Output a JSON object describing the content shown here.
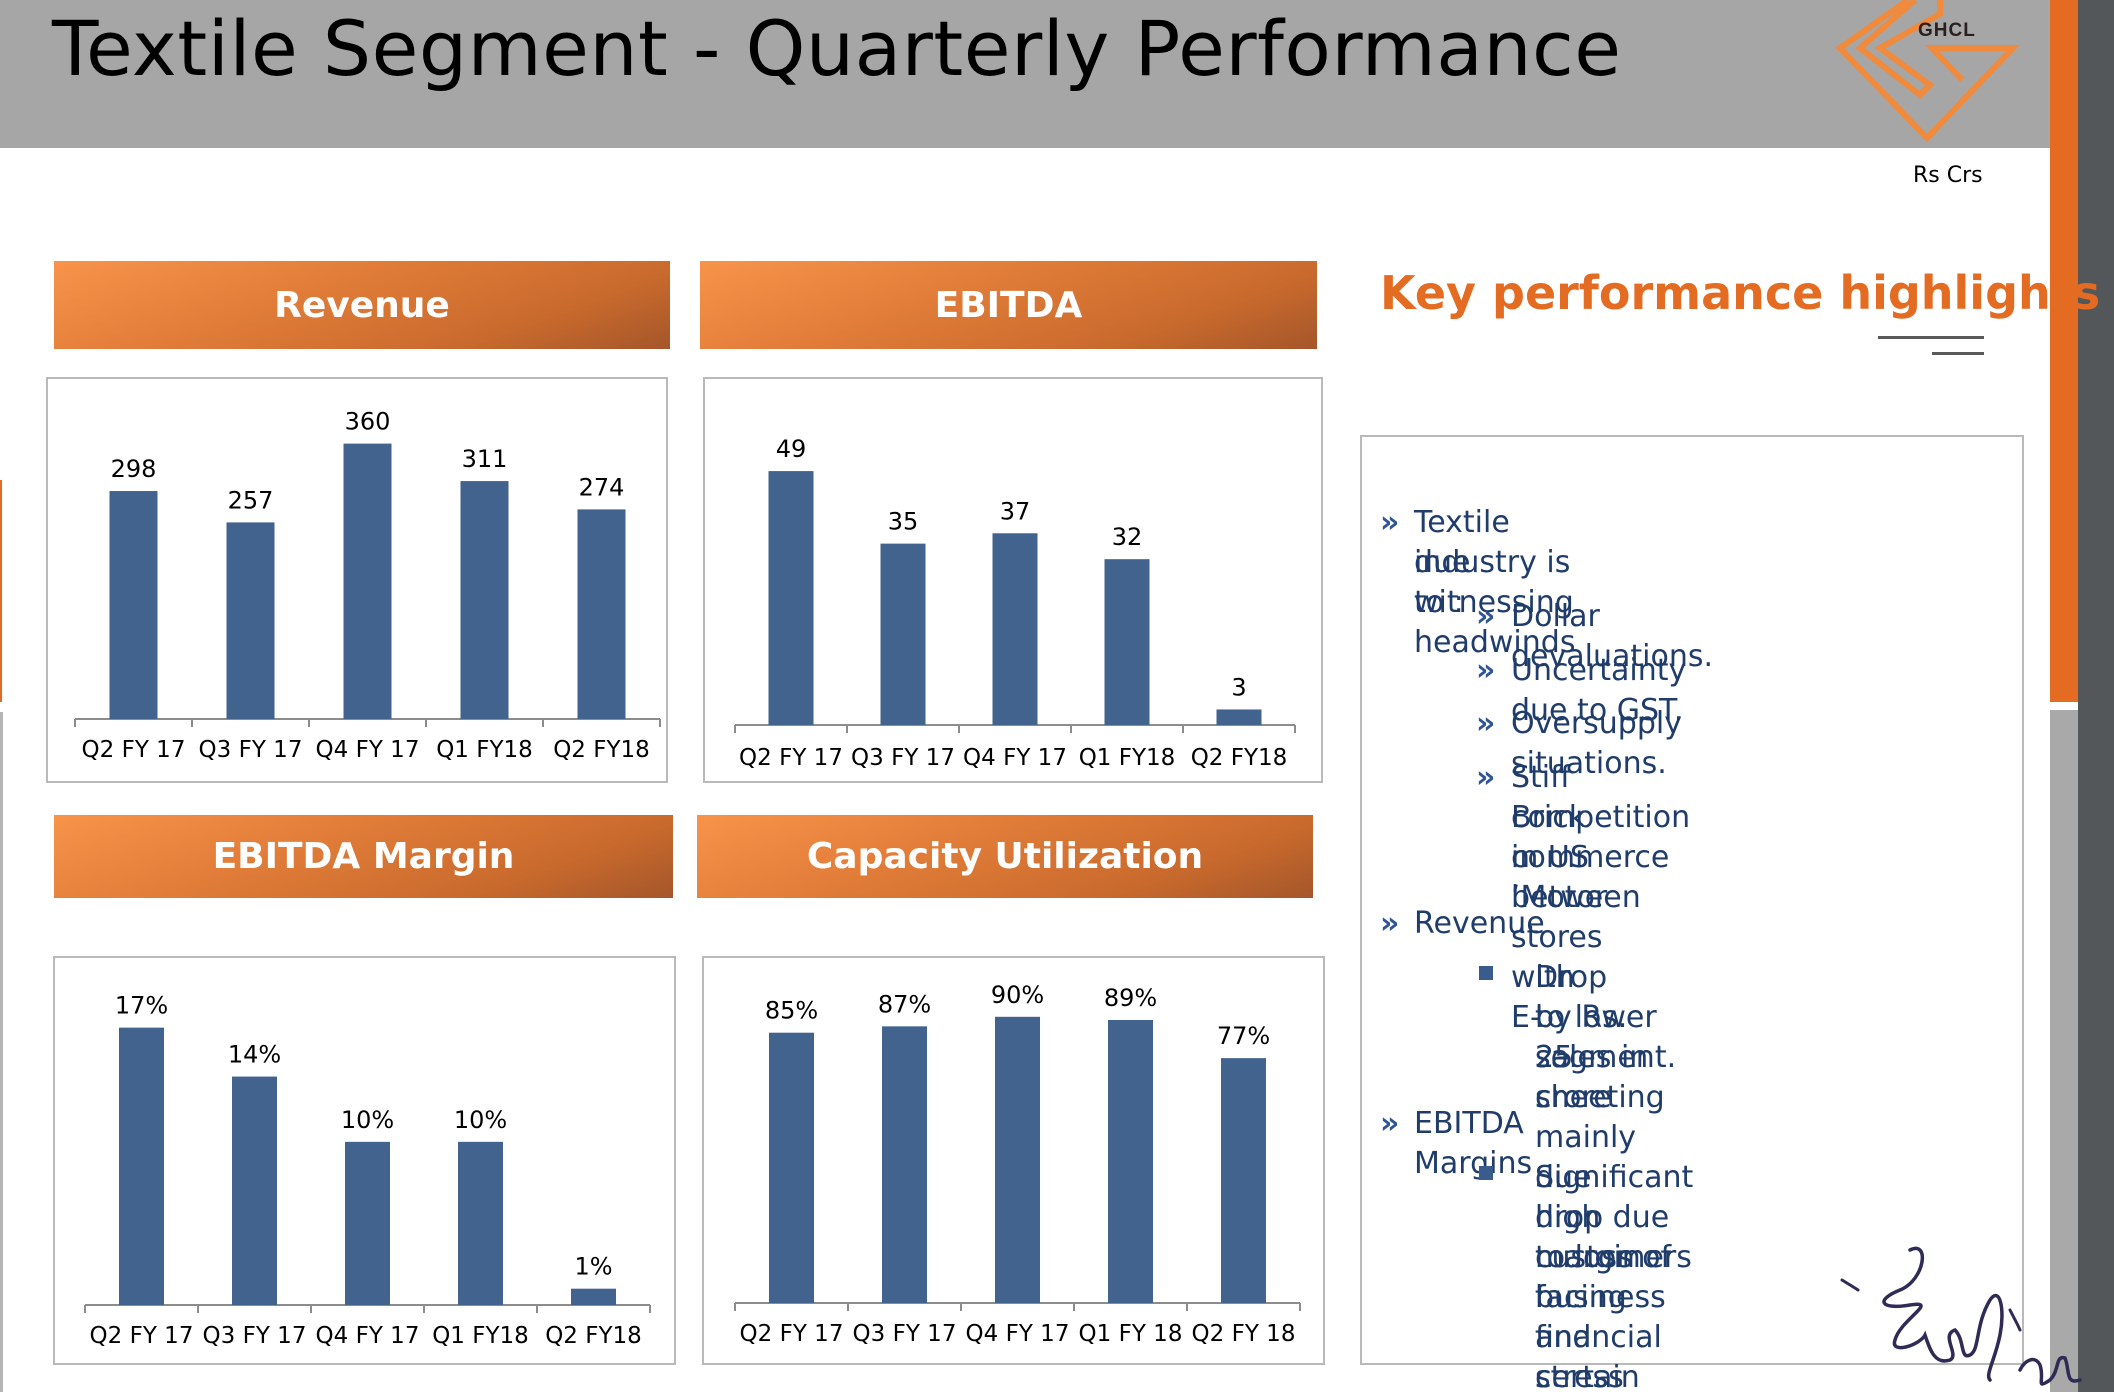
{
  "header": {
    "title": "Textile Segment - Quarterly Performance",
    "logo_text": "GHCL",
    "units": "Rs Crs"
  },
  "colors": {
    "header_bg": "#a6a6a6",
    "accent_orange": "#e46c22",
    "bar": "#41638e",
    "highlight_text": "#1f3c6b"
  },
  "chart_data": [
    {
      "type": "bar",
      "title": "Revenue",
      "categories": [
        "Q2 FY 17",
        "Q3 FY 17",
        "Q4 FY 17",
        "Q1 FY18",
        "Q2 FY18"
      ],
      "values": [
        298,
        257,
        360,
        311,
        274
      ],
      "value_labels": [
        "298",
        "257",
        "360",
        "311",
        "274"
      ],
      "xlabel": "",
      "ylabel": "",
      "ylim": [
        0,
        400
      ],
      "grid": false,
      "legend": "none"
    },
    {
      "type": "bar",
      "title": "EBITDA",
      "categories": [
        "Q2 FY 17",
        "Q3 FY 17",
        "Q4 FY 17",
        "Q1 FY18",
        "Q2 FY18"
      ],
      "values": [
        49,
        35,
        37,
        32,
        3
      ],
      "value_labels": [
        "49",
        "35",
        "37",
        "32",
        "3"
      ],
      "xlabel": "",
      "ylabel": "",
      "ylim": [
        0,
        55
      ],
      "grid": false,
      "legend": "none"
    },
    {
      "type": "bar",
      "title": "EBITDA Margin",
      "categories": [
        "Q2 FY 17",
        "Q3 FY 17",
        "Q4 FY 17",
        "Q1 FY18",
        "Q2 FY18"
      ],
      "values": [
        17,
        14,
        10,
        10,
        1
      ],
      "value_labels": [
        "17%",
        "14%",
        "10%",
        "10%",
        "1%"
      ],
      "xlabel": "",
      "ylabel": "",
      "ylim": [
        0,
        19
      ],
      "grid": false,
      "legend": "none"
    },
    {
      "type": "bar",
      "title": "Capacity Utilization",
      "categories": [
        "Q2 FY 17",
        "Q3 FY 17",
        "Q4 FY 17",
        "Q1 FY 18",
        "Q2 FY 18"
      ],
      "values": [
        85,
        87,
        90,
        89,
        77
      ],
      "value_labels": [
        "85%",
        "87%",
        "90%",
        "89%",
        "77%"
      ],
      "xlabel": "",
      "ylabel": "",
      "ylim": [
        0,
        100
      ],
      "grid": false,
      "legend": "none"
    }
  ],
  "highlights": {
    "title": "Key performance highlights",
    "bullet_glyph": "»",
    "items": [
      {
        "text_lines": [
          "Textile industry is witnessing headwinds",
          "due to :"
        ],
        "sub": [
          {
            "lines": [
              "Dollar devaluations."
            ]
          },
          {
            "lines": [
              "Uncertainty due to GST."
            ]
          },
          {
            "lines": [
              "Oversupply situations."
            ]
          },
          {
            "lines": [
              "Stiff competition in US between",
              "Brick n ‘Motor stores with E-",
              "commerce"
            ]
          }
        ]
      },
      {
        "text_lines": [
          "Revenue"
        ],
        "sub": [
          {
            "lines": [
              "Drop by Rs. 25 crore mainly due",
              "to lower sales in sheeting",
              "segment."
            ]
          }
        ]
      },
      {
        "text_lines": [
          "EBITDA Margins"
        ],
        "sub": [
          {
            "lines": [
              "Significant drop due to loss of",
              "high margin business and certain",
              "customers facing financial stress"
            ]
          }
        ]
      }
    ]
  }
}
